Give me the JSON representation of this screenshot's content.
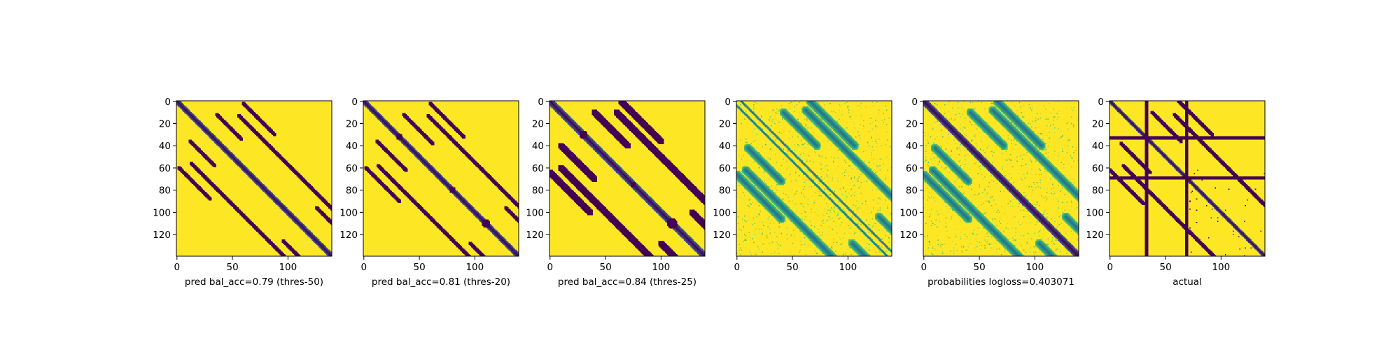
{
  "figure": {
    "layout": "1 row x 6 image panels",
    "colormap": "viridis"
  },
  "colors": {
    "low": "#440154",
    "high": "#fde725",
    "mid_teal": "#21918c",
    "mid_green": "#5ec962",
    "axis": "#000000"
  },
  "chart_data": [
    {
      "type": "heatmap",
      "matrix_size": 140,
      "xlabel": "pred bal_acc=0.79 (thres-50)",
      "xticks": [
        0,
        50,
        100
      ],
      "yticks": [
        0,
        20,
        40,
        60,
        80,
        100,
        120
      ],
      "values": "binary",
      "features": {
        "main_diagonal": true,
        "diagonal_width": 2.4,
        "off_diagonal_segments": [
          [
            60,
            2,
            28,
            20,
            2
          ],
          [
            36,
            12,
            22,
            20,
            2
          ],
          [
            13,
            56,
            100,
            10,
            2
          ],
          [
            96,
            126,
            26,
            8,
            2
          ]
        ],
        "extra_diagonal_segments": []
      }
    },
    {
      "type": "heatmap",
      "matrix_size": 140,
      "xlabel": "pred bal_acc=0.81 (thres-20)",
      "xticks": [
        0,
        50,
        100
      ],
      "yticks": [
        0,
        20,
        40,
        60,
        80,
        100,
        120
      ],
      "values": "binary",
      "features": {
        "main_diagonal": true,
        "diagonal_width": 2.6,
        "off_diagonal_segments": [
          [
            60,
            2,
            30,
            20,
            2
          ],
          [
            36,
            12,
            26,
            22,
            2
          ],
          [
            13,
            58,
            104,
            12,
            2
          ],
          [
            96,
            128,
            30,
            10,
            2
          ]
        ],
        "blobs": [
          [
            32,
            32,
            3
          ],
          [
            80,
            80,
            3
          ],
          [
            110,
            110,
            4
          ]
        ]
      }
    },
    {
      "type": "heatmap",
      "matrix_size": 140,
      "xlabel": "pred bal_acc=0.84 (thres-25)",
      "xticks": [
        0,
        50,
        100
      ],
      "yticks": [
        0,
        20,
        40,
        60,
        80,
        100,
        120
      ],
      "values": "binary",
      "features": {
        "main_diagonal": true,
        "diagonal_width": 3.0,
        "off_diagonal_segments": [
          [
            64,
            0,
            36,
            24,
            3
          ],
          [
            40,
            10,
            30,
            24,
            3
          ],
          [
            10,
            60,
            108,
            22,
            3
          ],
          [
            100,
            128,
            34,
            18,
            3
          ]
        ],
        "blobs": [
          [
            30,
            30,
            4
          ],
          [
            75,
            75,
            3
          ],
          [
            110,
            110,
            5
          ]
        ]
      }
    },
    {
      "type": "heatmap",
      "matrix_size": 140,
      "xlabel": "",
      "xticks": [
        0,
        50,
        100
      ],
      "yticks": [
        0,
        20,
        40,
        60,
        80,
        100,
        120
      ],
      "values": "continuous",
      "features": {
        "main_diagonal": false,
        "near_diagonals": [
          -4,
          4
        ],
        "off_diagonal_segments": [
          [
            66,
            0,
            40,
            30,
            4
          ],
          [
            42,
            10,
            30,
            28,
            4
          ],
          [
            8,
            62,
            112,
            24,
            4
          ],
          [
            104,
            128,
            36,
            22,
            4
          ]
        ],
        "texture": true
      }
    },
    {
      "type": "heatmap",
      "matrix_size": 140,
      "xlabel": "probabilities logloss=0.403071",
      "xticks": [
        0,
        50,
        100
      ],
      "yticks": [
        0,
        20,
        40,
        60,
        80,
        100,
        120
      ],
      "values": "continuous",
      "features": {
        "main_diagonal": true,
        "diagonal_width": 3.2,
        "off_diagonal_segments": [
          [
            66,
            0,
            40,
            30,
            4
          ],
          [
            42,
            10,
            30,
            28,
            4
          ],
          [
            8,
            62,
            112,
            24,
            4
          ],
          [
            104,
            128,
            36,
            22,
            4
          ]
        ],
        "texture": true
      }
    },
    {
      "type": "heatmap",
      "matrix_size": 140,
      "xlabel": "actual",
      "xticks": [
        0,
        50,
        100
      ],
      "yticks": [
        0,
        20,
        40,
        60,
        80,
        100,
        120
      ],
      "values": "binary",
      "features": {
        "main_diagonal": true,
        "diagonal_width": 1.8,
        "rows_full": [
          33,
          69
        ],
        "cols_full": [
          33,
          69
        ],
        "off_diagonal_segments": [
          [
            62,
            0,
            30,
            18,
            1.5
          ],
          [
            38,
            10,
            26,
            22,
            1.5
          ],
          [
            12,
            58,
            96,
            14,
            1.5
          ]
        ],
        "scatter": true
      }
    }
  ]
}
